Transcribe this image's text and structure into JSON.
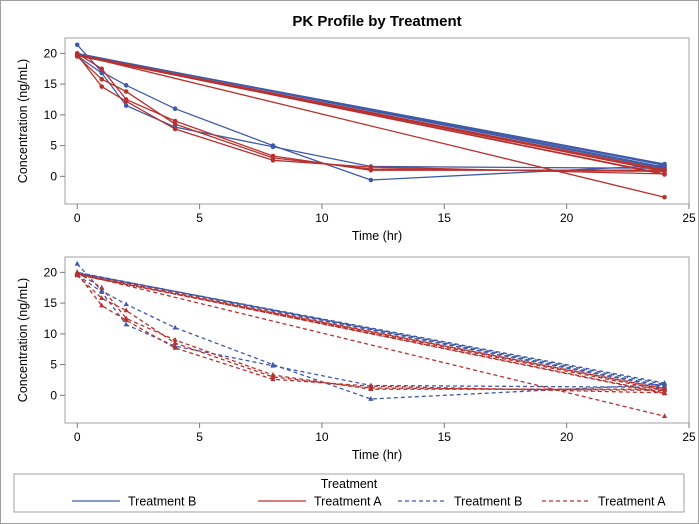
{
  "chart_data": {
    "type": "line",
    "title": "PK Profile by Treatment",
    "colors": {
      "Treatment B": "#3e5ba9",
      "Treatment A": "#b8312f"
    },
    "panels": [
      {
        "style": "solid",
        "xlabel": "Time (hr)",
        "ylabel": "Concentration (ng/mL)",
        "xlim": [
          -0.5,
          25
        ],
        "ylim": [
          -4.5,
          22.5
        ],
        "xticks": [
          "0",
          "5",
          "10",
          "15",
          "20",
          "25"
        ],
        "yticks": [
          "0",
          "5",
          "10",
          "15",
          "20"
        ]
      },
      {
        "style": "dashed",
        "xlabel": "Time (hr)",
        "ylabel": "Concentration (ng/mL)",
        "xlim": [
          -0.5,
          25
        ],
        "ylim": [
          -4.5,
          22.5
        ],
        "xticks": [
          "0",
          "5",
          "10",
          "15",
          "20",
          "25"
        ],
        "yticks": [
          "0",
          "5",
          "10",
          "15",
          "20"
        ]
      }
    ],
    "series": [
      {
        "name": "Treatment B",
        "x": [
          0,
          1,
          2,
          4,
          8,
          12,
          24,
          0,
          24
        ],
        "y": [
          21.4,
          17.0,
          14.8,
          11.0,
          5.0,
          -0.6,
          1.8,
          19.9,
          2.0
        ]
      },
      {
        "name": "Treatment B",
        "x": [
          0,
          1,
          2,
          4,
          8,
          12,
          24,
          0,
          24
        ],
        "y": [
          19.6,
          16.8,
          11.5,
          8.0,
          4.8,
          1.6,
          1.3,
          20.0,
          1.5
        ]
      },
      {
        "name": "Treatment A",
        "x": [
          0,
          1,
          2,
          4,
          8,
          12,
          24,
          0,
          24
        ],
        "y": [
          20.0,
          17.5,
          12.5,
          9.0,
          3.3,
          1.0,
          1.0,
          19.8,
          -3.4
        ]
      },
      {
        "name": "Treatment A",
        "x": [
          0,
          1,
          2,
          4,
          8,
          12,
          24,
          0,
          24
        ],
        "y": [
          19.8,
          14.6,
          12.2,
          7.7,
          2.6,
          1.5,
          0.4,
          19.7,
          0.3
        ]
      },
      {
        "name": "Treatment A",
        "x": [
          0,
          1,
          2,
          4,
          8,
          12,
          24,
          0,
          24
        ],
        "y": [
          19.5,
          15.8,
          13.8,
          8.5,
          3.0,
          1.2,
          0.8,
          19.6,
          1.1
        ]
      }
    ],
    "legend": {
      "title": "Treatment",
      "entries": [
        {
          "label": "Treatment B",
          "series": "Treatment B",
          "style": "solid"
        },
        {
          "label": "Treatment A",
          "series": "Treatment A",
          "style": "solid"
        },
        {
          "label": "Treatment B",
          "series": "Treatment B",
          "style": "dashed"
        },
        {
          "label": "Treatment A",
          "series": "Treatment A",
          "style": "dashed"
        }
      ],
      "position": "bottom"
    }
  }
}
